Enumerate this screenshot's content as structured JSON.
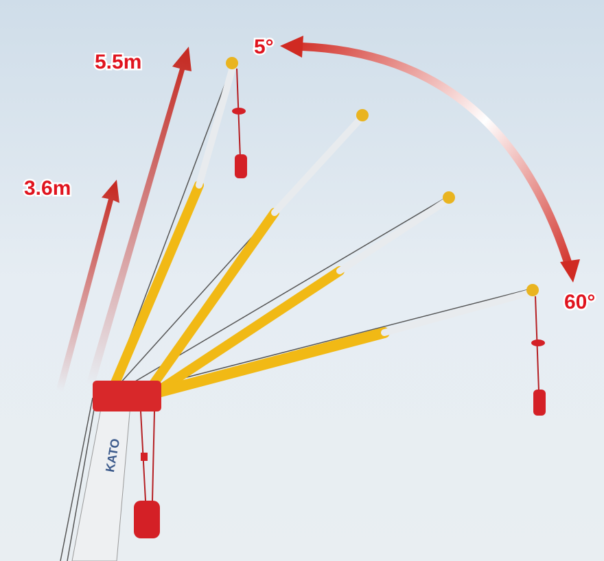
{
  "labels": {
    "top_angle": "5°",
    "bottom_angle": "60°",
    "long_length": "5.5m",
    "short_length": "3.6m"
  },
  "boom_text": "KATO"
}
